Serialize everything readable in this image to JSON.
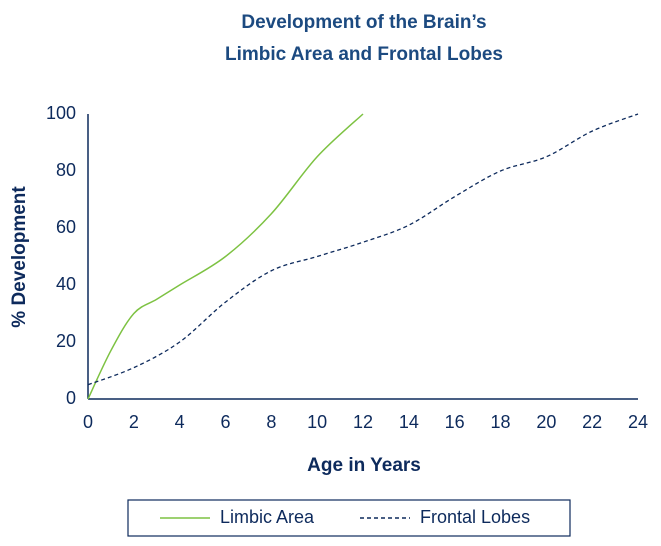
{
  "chart_data": {
    "type": "line",
    "title": [
      "Development of the Brain’s",
      "Limbic Area and Frontal Lobes"
    ],
    "x_label": "Age in Years",
    "y_label": "% Development",
    "series": [
      {
        "name": "Limbic Area",
        "color": "#7dc242",
        "dash": false,
        "x": [
          0,
          1,
          2,
          3,
          4,
          6,
          8,
          10,
          12
        ],
        "values": [
          0,
          17,
          30,
          35,
          40,
          50,
          65,
          85,
          100
        ]
      },
      {
        "name": "Frontal Lobes",
        "color": "#0d2a5c",
        "dash": true,
        "x": [
          0,
          2,
          4,
          6,
          8,
          10,
          12,
          14,
          16,
          18,
          20,
          22,
          24
        ],
        "values": [
          5,
          11,
          20,
          34,
          45,
          50,
          55,
          61,
          71,
          80,
          85,
          94,
          100
        ]
      }
    ],
    "xlim": [
      0,
      24
    ],
    "xticks": [
      0,
      2,
      4,
      6,
      8,
      10,
      12,
      14,
      16,
      18,
      20,
      22,
      24
    ],
    "ylim": [
      0,
      100
    ],
    "yticks": [
      0,
      20,
      40,
      60,
      80,
      100
    ],
    "grid": false,
    "legend": "bottom"
  }
}
